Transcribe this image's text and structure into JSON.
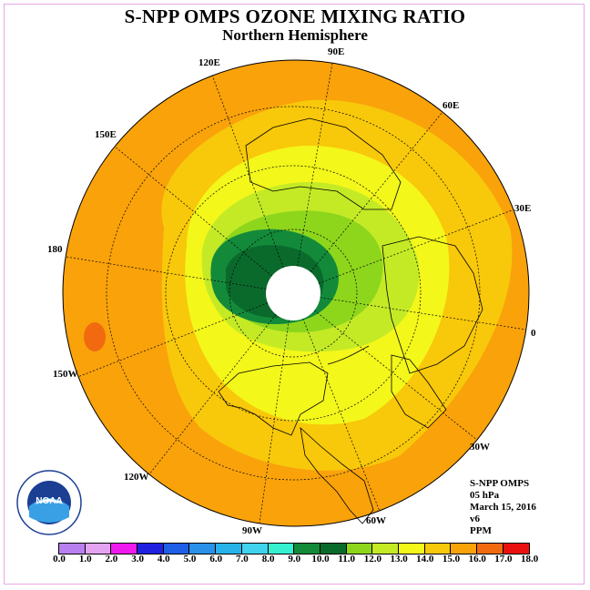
{
  "title": "S-NPP OMPS OZONE MIXING RATIO",
  "subtitle": "Northern Hemisphere",
  "longitude_labels": [
    "90E",
    "60E",
    "30E",
    "0",
    "30W",
    "60W",
    "90W",
    "120W",
    "150W",
    "180",
    "150E",
    "120E"
  ],
  "info": {
    "instrument": "S-NPP OMPS",
    "pressure": "05 hPa",
    "date": "March 15, 2016",
    "version": "v6",
    "units": "PPM"
  },
  "colorbar": {
    "ticks": [
      "0.0",
      "1.0",
      "2.0",
      "3.0",
      "4.0",
      "5.0",
      "6.0",
      "7.0",
      "8.0",
      "9.0",
      "10.0",
      "11.0",
      "12.0",
      "13.0",
      "14.0",
      "15.0",
      "16.0",
      "17.0",
      "18.0"
    ],
    "colors": [
      "#b87ff0",
      "#e4a3f0",
      "#ee1aee",
      "#2020e0",
      "#1e5fe6",
      "#2a90e8",
      "#27b3ea",
      "#3fd3ee",
      "#36f0d0",
      "#138a3a",
      "#0a6a2c",
      "#8ed61c",
      "#c4ea26",
      "#f3f71a",
      "#f8c80a",
      "#f9a20a",
      "#f26a10",
      "#ea1010",
      "#8a5a3a"
    ]
  },
  "map_colors": {
    "ocean_band": "#f9a20a",
    "band_14": "#f8c80a",
    "band_13": "#f3f71a",
    "band_12": "#c4ea26",
    "band_11": "#8ed61c",
    "band_10": "#138a3a",
    "band_9": "#0a6a2c",
    "hot_spot": "#f26a10"
  },
  "logo": {
    "text": "NOAA"
  }
}
